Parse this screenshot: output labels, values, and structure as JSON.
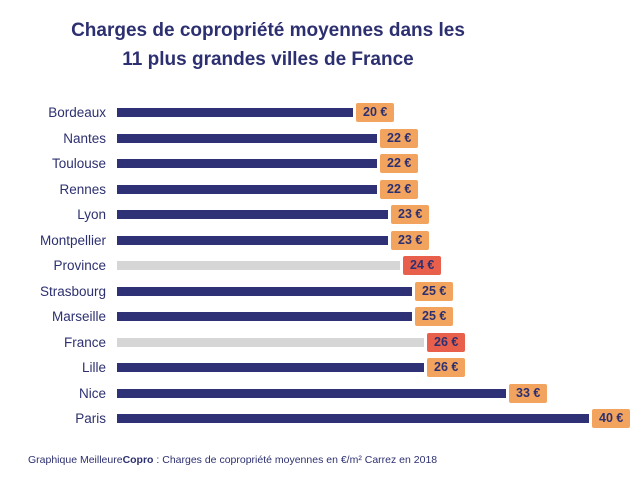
{
  "title": {
    "line1": "Charges de copropriété moyennes dans les",
    "line2": "11 plus grandes villes de France"
  },
  "footer": {
    "prefix": "Graphique Meilleure",
    "bold": "Copro",
    "suffix": " : Charges de copropriété moyennes en  €/m² Carrez en 2018"
  },
  "colors": {
    "navy_bar": "#2e3175",
    "gray_bar": "#d6d6d6",
    "orange_badge": "#f2a45f",
    "red_badge": "#e8604c",
    "text_navy": "#2d3070"
  },
  "chart_data": {
    "type": "bar",
    "orientation": "horizontal",
    "title": "Charges de copropriété moyennes dans les 11 plus grandes villes de France",
    "unit": "€/m² Carrez",
    "year": "2018",
    "xlim": [
      0,
      40
    ],
    "categories": [
      "Bordeaux",
      "Nantes",
      "Toulouse",
      "Rennes",
      "Lyon",
      "Montpellier",
      "Province",
      "Strasbourg",
      "Marseille",
      "France",
      "Lille",
      "Nice",
      "Paris"
    ],
    "values": [
      20,
      22,
      22,
      22,
      23,
      23,
      24,
      25,
      25,
      26,
      26,
      33,
      40
    ],
    "value_labels": [
      "20 €",
      "22 €",
      "22 €",
      "22 €",
      "23 €",
      "23 €",
      "24 €",
      "25 €",
      "25 €",
      "26 €",
      "26 €",
      "33 €",
      "40 €"
    ],
    "highlighted_categories": [
      "Province",
      "France"
    ],
    "legend": "none",
    "grid": "off"
  }
}
